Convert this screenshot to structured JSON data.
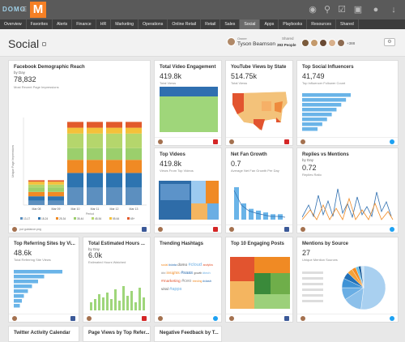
{
  "top": {
    "logo_text": "DOMO",
    "logo_letter": "M"
  },
  "nav": [
    "Overview",
    "Favorites",
    "Alerts",
    "Finance",
    "HR",
    "Marketing",
    "Operations",
    "Online Retail",
    "Retail",
    "Sales",
    "Social",
    "Apps",
    "Playbooks",
    "Resources",
    "Shared"
  ],
  "nav_active": "Social",
  "page": {
    "title": "Social",
    "owner_label": "Owner",
    "owner_name": "Tyson Bearnson",
    "shared_label": "Shared",
    "shared_count": "393 People",
    "plus": "+388"
  },
  "cards": {
    "fb_reach": {
      "title": "Facebook Demographic Reach",
      "sub": "by Day",
      "value": "78,832",
      "label": "Most Recent Page Impressions",
      "ylabel": "Unique Page Impressions",
      "xlabel": "Period",
      "footer": "put guidance.png"
    },
    "video_eng": {
      "title": "Total Video Engagement",
      "value": "419.8k",
      "label": "Total Views"
    },
    "yt_state": {
      "title": "YouTube Views by State",
      "value": "514.75k",
      "label": "Total Views"
    },
    "influencers": {
      "title": "Top Social Influencers",
      "value": "41,749",
      "label": "Top Influencer Follower Count"
    },
    "top_videos": {
      "title": "Top Videos",
      "value": "419.8k",
      "label": "Views From Top Videos"
    },
    "fan_growth": {
      "title": "Net Fan Growth",
      "value": "0.7",
      "label": "Average Net Fan Growth Per Day"
    },
    "replies": {
      "title": "Replies vs Mentions",
      "sub": "by Day",
      "value": "0.72",
      "label": "Replies Ratio"
    },
    "referring": {
      "title": "Top Referring Sites by Vi...",
      "value": "48.6k",
      "label": "Total Referring Site Views"
    },
    "est_hours": {
      "title": "Total Estimated Hours ...",
      "sub": "by Day",
      "value": "6.0k",
      "label": "Estimated Hours Watched"
    },
    "hashtags": {
      "title": "Trending Hashtags"
    },
    "engaging": {
      "title": "Top 10 Engaging Posts"
    },
    "mentions": {
      "title": "Mentions by Source",
      "value": "27",
      "label": "Unique Mention Sources"
    },
    "twitter_cal": {
      "title": "Twitter Activity Calendar"
    },
    "page_views": {
      "title": "Page Views by Top Refer..."
    },
    "neg_feedback": {
      "title": "Negative Feedback by T..."
    }
  },
  "chart_data": [
    {
      "type": "bar",
      "title": "Facebook Demographic Reach",
      "xlabel": "Period",
      "ylabel": "Unique Page Impressions",
      "categories": [
        "Mar 08",
        "Mar 09",
        "Mar 10",
        "Mar 11",
        "Mar 12",
        "Mar 13"
      ],
      "series": [
        {
          "name": "13-17",
          "values": [
            3,
            3,
            12,
            12,
            12,
            12
          ],
          "color": "#5c8fbf"
        },
        {
          "name": "18-24",
          "values": [
            3,
            3,
            10,
            10,
            10,
            10
          ],
          "color": "#2d74b0"
        },
        {
          "name": "25-34",
          "values": [
            3,
            3,
            9,
            9,
            9,
            9
          ],
          "color": "#f08a24"
        },
        {
          "name": "35-44",
          "values": [
            3,
            3,
            8,
            8,
            8,
            8
          ],
          "color": "#9bcf6c"
        },
        {
          "name": "45-54",
          "values": [
            2,
            2,
            10,
            10,
            10,
            10
          ],
          "color": "#b5d66c"
        },
        {
          "name": "55-64",
          "values": [
            2,
            2,
            4,
            4,
            4,
            4
          ],
          "color": "#f4c13a"
        },
        {
          "name": "65+",
          "values": [
            1,
            1,
            4,
            4,
            4,
            4
          ],
          "color": "#e25a2c"
        }
      ]
    },
    {
      "type": "bar",
      "title": "Top Social Influencers",
      "values": [
        41,
        37,
        33,
        29,
        25,
        21,
        17,
        13
      ],
      "color": "#6ab4e8"
    },
    {
      "type": "bar",
      "title": "Top Referring Sites by Vi...",
      "values": [
        48,
        30,
        24,
        18,
        14,
        10,
        8,
        6
      ],
      "color": "#6ab4e8"
    },
    {
      "type": "bar",
      "title": "Net Fan Growth",
      "values": [
        1.8,
        0.9,
        0.6,
        0.5,
        0.4,
        0.3,
        0.3
      ],
      "color": "#6ab4e8"
    },
    {
      "type": "pie",
      "title": "Mentions by Source",
      "values": [
        52,
        14,
        9,
        7,
        5,
        4,
        3,
        2,
        2,
        2
      ],
      "colors": [
        "#a9d0f0",
        "#8cc0ea",
        "#6aaee4",
        "#3f93d6",
        "#2170b8",
        "#f4a33b",
        "#f58d23",
        "#5fc0e8",
        "#1e5f9c",
        "#c7e3f7"
      ]
    }
  ],
  "hashtags": [
    "social",
    "#data",
    "domo",
    "#cloud",
    "analytics",
    "#bi",
    "insights",
    "#saas",
    "growth",
    "#tech",
    "#marketing",
    "#ceo",
    "trending",
    "#dash",
    "viral",
    "#apps"
  ]
}
